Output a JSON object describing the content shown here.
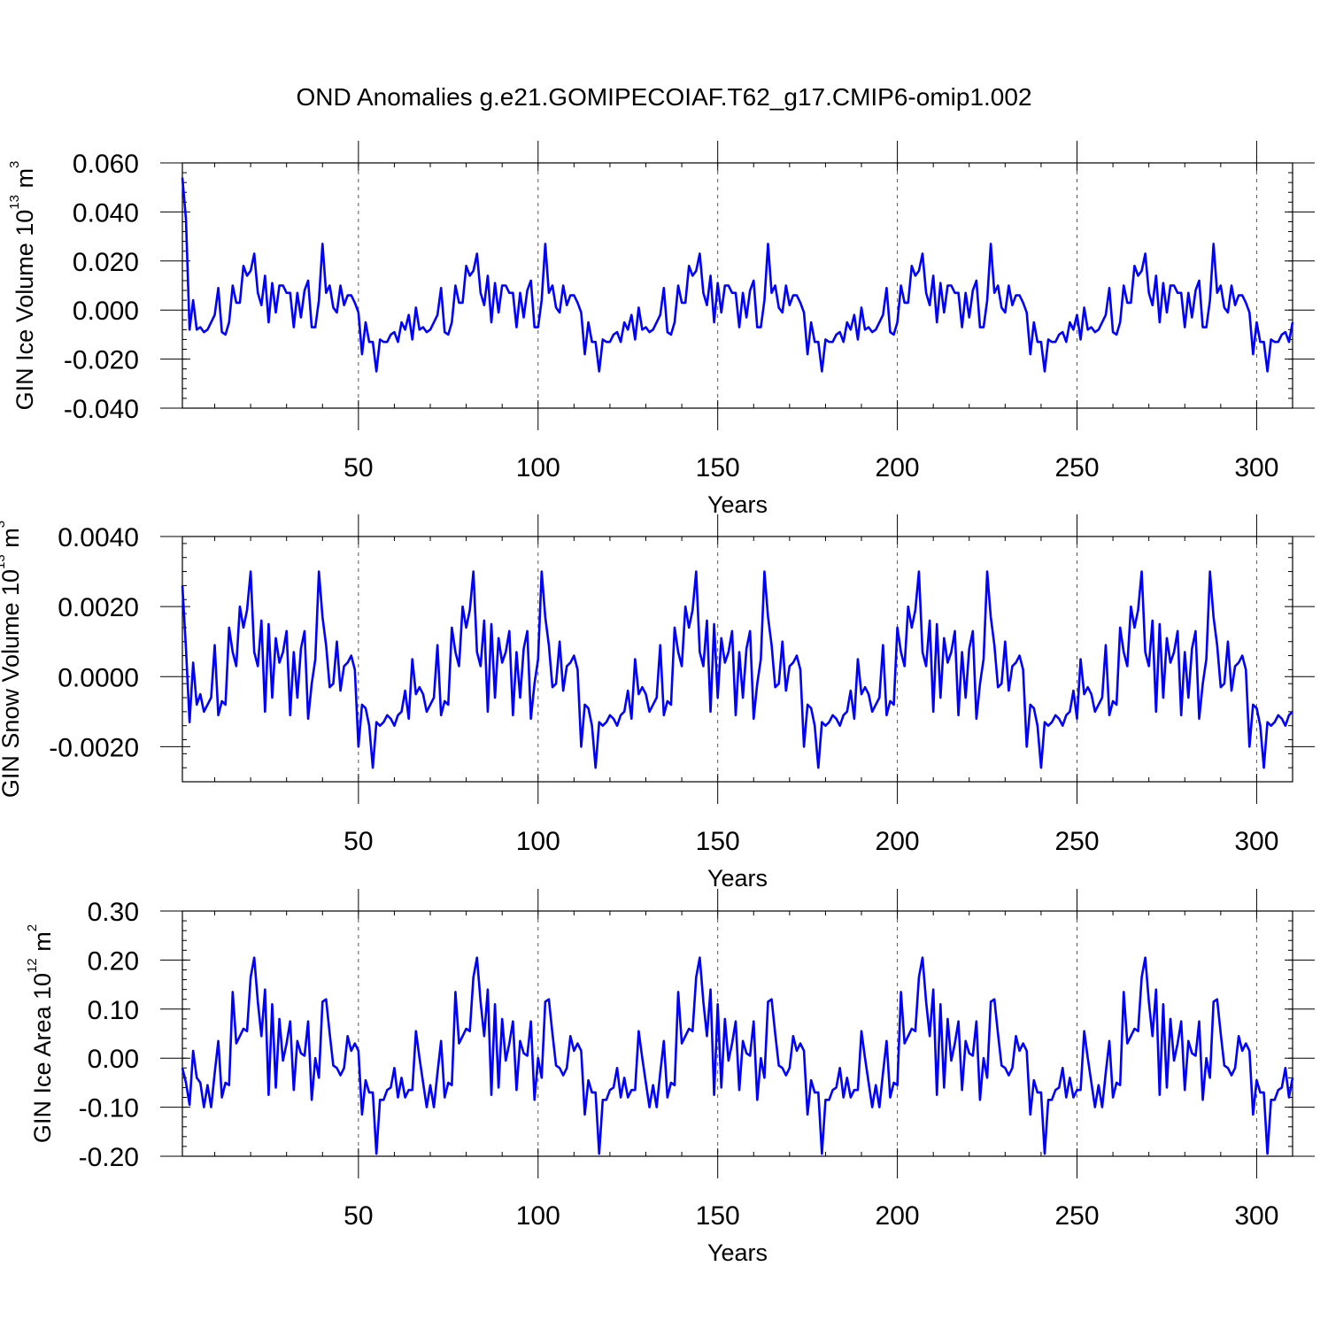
{
  "chart_data": [
    {
      "type": "line",
      "title": "OND Anomalies g.e21.GOMIPECOIAF.T62_g17.CMIP6-omip1.002",
      "ylabel_main": "GIN Ice Volume 10",
      "ylabel_sup": "13",
      "ylabel_unit": " m",
      "ylabel_unit_sup": "3",
      "xlabel": "Years",
      "xlim": [
        1,
        310
      ],
      "ylim": [
        -0.04,
        0.06
      ],
      "x_ticks": [
        50,
        100,
        150,
        200,
        250,
        300
      ],
      "x_tick_labels": [
        "50",
        "100",
        "150",
        "200",
        "250",
        "300"
      ],
      "y_ticks": [
        -0.04,
        -0.02,
        0.0,
        0.02,
        0.04,
        0.06
      ],
      "y_tick_labels": [
        "-0.040",
        "-0.020",
        "0.000",
        "0.020",
        "0.040",
        "0.060"
      ],
      "grid": "vertical dashed lines at x ticks",
      "color": "#0000ff",
      "cycle_length": 62,
      "initial_transient": [
        0.054,
        0.037,
        -0.008,
        0.004,
        -0.008
      ],
      "cycle": [
        -0.007,
        -0.009,
        -0.008,
        -0.005,
        -0.002,
        0.009,
        -0.009,
        -0.01,
        -0.005,
        0.01,
        0.003,
        0.003,
        0.018,
        0.014,
        0.016,
        0.023,
        0.007,
        0.002,
        0.014,
        -0.005,
        0.011,
        -0.001,
        0.01,
        0.01,
        0.007,
        0.007,
        -0.007,
        0.007,
        -0.003,
        0.008,
        0.012,
        -0.007,
        -0.007,
        0.004,
        0.027,
        0.007,
        0.01,
        0.001,
        -0.001,
        0.01,
        0.002,
        0.006,
        0.006,
        0.003,
        -0.001,
        -0.018,
        -0.005,
        -0.013,
        -0.013,
        -0.025,
        -0.012,
        -0.013,
        -0.013,
        -0.01,
        -0.009,
        -0.013,
        -0.005,
        -0.008,
        -0.002,
        -0.012,
        0.001,
        -0.008
      ]
    },
    {
      "type": "line",
      "ylabel_main": "GIN Snow Volume 10",
      "ylabel_sup": "13",
      "ylabel_unit": " m",
      "ylabel_unit_sup": "3",
      "xlabel": "Years",
      "xlim": [
        1,
        310
      ],
      "ylim": [
        -0.003,
        0.004
      ],
      "x_ticks": [
        50,
        100,
        150,
        200,
        250,
        300
      ],
      "x_tick_labels": [
        "50",
        "100",
        "150",
        "200",
        "250",
        "300"
      ],
      "y_ticks": [
        -0.002,
        0.0,
        0.002,
        0.004
      ],
      "y_tick_labels": [
        "-0.0020",
        "0.0000",
        "0.0020",
        "0.0040"
      ],
      "grid": "vertical dashed lines at x ticks",
      "color": "#0000ff",
      "cycle_length": 62,
      "initial_transient": [
        0.0026,
        0.0008,
        -0.0013,
        0.0004,
        -0.0008
      ],
      "cycle": [
        -0.0005,
        -0.001,
        -0.0008,
        -0.0006,
        0.0009,
        -0.0011,
        -0.0007,
        -0.0008,
        0.0014,
        0.0007,
        0.0003,
        0.002,
        0.0014,
        0.0019,
        0.003,
        0.0007,
        0.0003,
        0.0016,
        -0.001,
        0.0015,
        -0.0006,
        0.0011,
        0.0004,
        0.0007,
        0.0013,
        -0.0011,
        0.0007,
        -0.0006,
        0.0008,
        0.0013,
        -0.0012,
        -0.0002,
        0.0005,
        0.003,
        0.0017,
        0.0009,
        -0.0003,
        -0.0002,
        0.001,
        -0.0004,
        0.0003,
        0.0004,
        0.0006,
        0.0002,
        -0.002,
        -0.0008,
        -0.0009,
        -0.0014,
        -0.0026,
        -0.0013,
        -0.0014,
        -0.0013,
        -0.0011,
        -0.0012,
        -0.0014,
        -0.0011,
        -0.001,
        -0.0004,
        -0.0012,
        0.0005,
        -0.0005,
        -0.0003
      ]
    },
    {
      "type": "line",
      "ylabel_main": "GIN Ice Area 10",
      "ylabel_sup": "12",
      "ylabel_unit": " m",
      "ylabel_unit_sup": "2",
      "xlabel": "Years",
      "xlim": [
        1,
        310
      ],
      "ylim": [
        -0.2,
        0.3
      ],
      "x_ticks": [
        50,
        100,
        150,
        200,
        250,
        300
      ],
      "x_tick_labels": [
        "50",
        "100",
        "150",
        "200",
        "250",
        "300"
      ],
      "y_ticks": [
        -0.2,
        -0.1,
        0.0,
        0.1,
        0.2,
        0.3
      ],
      "y_tick_labels": [
        "-0.20",
        "-0.10",
        "0.00",
        "0.10",
        "0.20",
        "0.30"
      ],
      "grid": "vertical dashed lines at x ticks",
      "color": "#0000ff",
      "cycle_length": 62,
      "initial_transient": [
        -0.02,
        -0.05,
        -0.095,
        0.015,
        -0.04
      ],
      "cycle": [
        -0.05,
        -0.1,
        -0.055,
        -0.1,
        -0.03,
        0.035,
        -0.08,
        -0.05,
        -0.055,
        0.135,
        0.03,
        0.045,
        0.06,
        0.055,
        0.165,
        0.205,
        0.115,
        0.045,
        0.14,
        -0.075,
        0.11,
        -0.06,
        0.08,
        -0.005,
        0.03,
        0.075,
        -0.065,
        0.035,
        0.01,
        0.005,
        0.075,
        -0.085,
        0.0,
        -0.04,
        0.115,
        0.12,
        0.05,
        -0.015,
        -0.02,
        -0.035,
        -0.02,
        0.045,
        0.015,
        0.03,
        0.015,
        -0.115,
        -0.045,
        -0.07,
        -0.07,
        -0.195,
        -0.085,
        -0.085,
        -0.065,
        -0.06,
        -0.02,
        -0.08,
        -0.04,
        -0.08,
        -0.065,
        -0.065,
        0.055,
        0.0
      ]
    }
  ]
}
